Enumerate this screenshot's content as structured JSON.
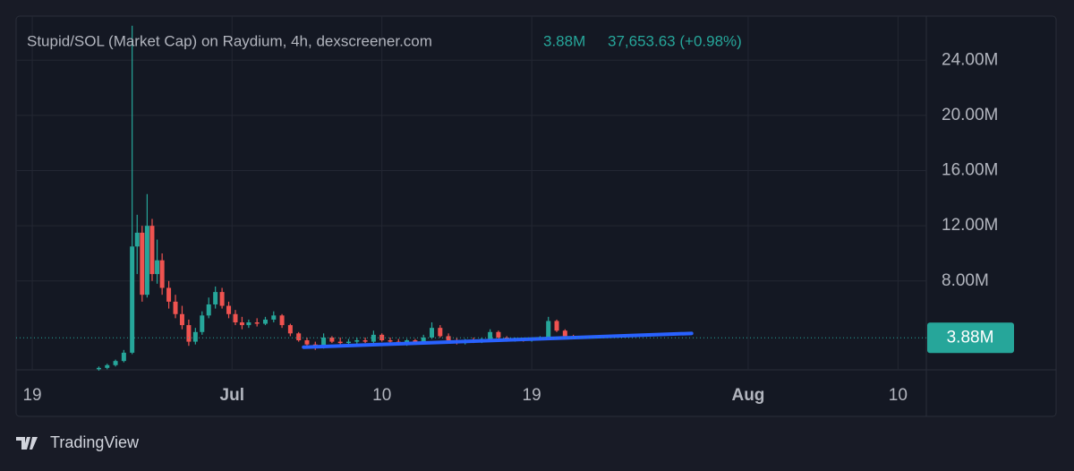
{
  "chart_data": {
    "type": "candlestick",
    "title": "Stupid/SOL (Market Cap) on Raydium, 4h, dexscreener.com",
    "header_value": "3.88M",
    "header_change": "37,653.63 (+0.98%)",
    "last_price": {
      "value": 3.88,
      "label": "3.88M"
    },
    "up_color": "#26a69a",
    "down_color": "#ef5350",
    "x": [
      4,
      4.5,
      5,
      5.5,
      6,
      6.3,
      6.6,
      6.9,
      7.2,
      7.5,
      7.8,
      8.2,
      8.6,
      9,
      9.4,
      9.8,
      10.2,
      10.6,
      11,
      11.4,
      11.8,
      12.2,
      12.6,
      13,
      13.5,
      14,
      14.5,
      15,
      15.5,
      16,
      16.5,
      17,
      17.5,
      18,
      18.5,
      19,
      19.5,
      20,
      20.5,
      21,
      21.5,
      22,
      22.5,
      23,
      23.5,
      24,
      24.5,
      25,
      25.5,
      26,
      26.5,
      27,
      27.5,
      28,
      28.5,
      29,
      29.5,
      30,
      30.5,
      31,
      31.5,
      32,
      32.5,
      33
    ],
    "open": [
      1.6,
      1.7,
      1.9,
      2.2,
      2.8,
      10.5,
      11.5,
      7.0,
      12.0,
      8.5,
      9.5,
      7.5,
      6.5,
      5.6,
      4.8,
      3.6,
      4.3,
      5.5,
      6.3,
      7.2,
      6.2,
      5.6,
      5.0,
      4.8,
      5.0,
      4.9,
      5.2,
      5.5,
      4.8,
      4.2,
      3.7,
      3.4,
      3.2,
      3.9,
      3.6,
      3.5,
      3.6,
      3.7,
      3.6,
      4.1,
      3.7,
      3.6,
      3.5,
      3.7,
      3.5,
      3.9,
      4.6,
      4.0,
      3.7,
      3.5,
      3.7,
      3.6,
      3.8,
      4.3,
      3.9,
      3.7,
      3.8,
      3.7,
      3.8,
      3.9,
      5.1,
      4.4,
      4.0,
      3.85
    ],
    "high": [
      1.8,
      2.0,
      2.3,
      3.0,
      26.5,
      12.8,
      12.0,
      14.3,
      12.5,
      11.0,
      10.0,
      8.0,
      7.0,
      6.2,
      5.2,
      4.6,
      5.8,
      6.8,
      7.6,
      7.5,
      6.5,
      5.9,
      5.4,
      5.2,
      5.3,
      5.4,
      5.8,
      5.6,
      4.9,
      4.3,
      3.9,
      3.6,
      4.2,
      4.0,
      3.9,
      3.8,
      3.9,
      3.9,
      4.4,
      4.2,
      3.9,
      3.8,
      3.8,
      3.8,
      4.1,
      5.0,
      4.8,
      4.2,
      3.9,
      3.8,
      3.9,
      3.9,
      4.5,
      4.4,
      4.0,
      3.9,
      3.9,
      3.9,
      4.0,
      5.4,
      5.2,
      4.5,
      4.1,
      3.95
    ],
    "low": [
      1.5,
      1.6,
      1.8,
      2.1,
      2.7,
      8.5,
      6.5,
      6.8,
      8.0,
      7.8,
      7.0,
      6.0,
      5.3,
      4.5,
      3.3,
      3.4,
      4.1,
      5.3,
      6.0,
      6.0,
      5.3,
      4.8,
      4.5,
      4.6,
      4.7,
      4.8,
      5.0,
      4.6,
      4.0,
      3.6,
      3.2,
      3.0,
      3.1,
      3.5,
      3.3,
      3.3,
      3.4,
      3.5,
      3.5,
      3.6,
      3.4,
      3.4,
      3.3,
      3.4,
      3.4,
      3.8,
      3.9,
      3.6,
      3.4,
      3.4,
      3.5,
      3.5,
      3.7,
      3.8,
      3.6,
      3.6,
      3.6,
      3.6,
      3.7,
      3.8,
      4.3,
      3.9,
      3.8,
      3.8
    ],
    "close": [
      1.7,
      1.9,
      2.2,
      2.8,
      10.5,
      11.5,
      7.0,
      12.0,
      8.5,
      9.5,
      7.5,
      6.5,
      5.6,
      4.8,
      3.6,
      4.3,
      5.5,
      6.3,
      7.2,
      6.2,
      5.6,
      5.0,
      4.8,
      5.0,
      4.9,
      5.2,
      5.5,
      4.8,
      4.2,
      3.7,
      3.4,
      3.2,
      3.9,
      3.6,
      3.5,
      3.6,
      3.7,
      3.6,
      4.1,
      3.7,
      3.6,
      3.5,
      3.7,
      3.5,
      3.9,
      4.6,
      4.0,
      3.7,
      3.5,
      3.7,
      3.6,
      3.8,
      4.3,
      3.9,
      3.7,
      3.8,
      3.7,
      3.8,
      3.9,
      5.1,
      4.4,
      4.0,
      3.85,
      3.88
    ],
    "trendline": {
      "color": "#2962ff",
      "x": [
        16.3,
        39.6
      ],
      "y": [
        3.2,
        4.2
      ]
    },
    "xlim": [
      -0.97,
      53.7
    ],
    "xticks": [
      {
        "value": 0,
        "label": "19"
      },
      {
        "value": 12,
        "label": "Jul"
      },
      {
        "value": 21,
        "label": "10"
      },
      {
        "value": 30,
        "label": "19"
      },
      {
        "value": 43,
        "label": "Aug"
      },
      {
        "value": 52,
        "label": "10"
      }
    ],
    "ylim": [
      1.56,
      27.2
    ],
    "yticks": [
      {
        "value": 8,
        "label": "8.00M"
      },
      {
        "value": 12,
        "label": "12.00M"
      },
      {
        "value": 16,
        "label": "16.00M"
      },
      {
        "value": 20,
        "label": "20.00M"
      },
      {
        "value": 24,
        "label": "24.00M"
      }
    ],
    "grid": true,
    "footer": "TradingView"
  }
}
